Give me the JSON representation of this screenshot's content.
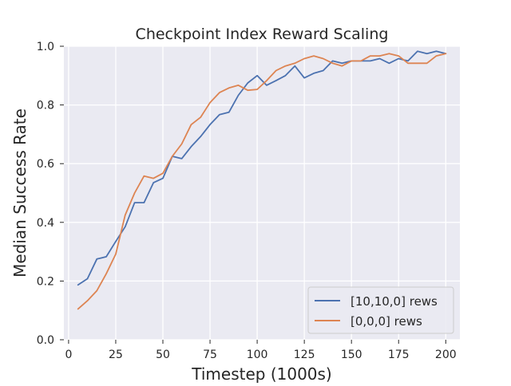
{
  "chart_data": {
    "type": "line",
    "title": "Checkpoint Index Reward Scaling",
    "xlabel": "Timestep (1000s)",
    "ylabel": "Median Success Rate",
    "xlim": [
      -2.5,
      207.5
    ],
    "ylim": [
      0.0,
      1.0
    ],
    "xticks": [
      0,
      25,
      50,
      75,
      100,
      125,
      150,
      175,
      200
    ],
    "yticks": [
      0.0,
      0.2,
      0.4,
      0.6,
      0.8,
      1.0
    ],
    "xtick_labels": [
      "0",
      "25",
      "50",
      "75",
      "100",
      "125",
      "150",
      "175",
      "200"
    ],
    "ytick_labels": [
      "0.0",
      "0.2",
      "0.4",
      "0.6",
      "0.8",
      "1.0"
    ],
    "grid": true,
    "background": "#eaeaf2",
    "legend_position": "lower right",
    "x": [
      5,
      10,
      15,
      20,
      25,
      30,
      35,
      40,
      45,
      50,
      55,
      60,
      65,
      70,
      75,
      80,
      85,
      90,
      95,
      100,
      105,
      110,
      115,
      120,
      125,
      130,
      135,
      140,
      145,
      150,
      155,
      160,
      165,
      170,
      175,
      180,
      185,
      190,
      195,
      200
    ],
    "series": [
      {
        "name": "[10,10,0] rews",
        "color": "#4c72b0",
        "values": [
          0.187,
          0.208,
          0.275,
          0.283,
          0.335,
          0.385,
          0.467,
          0.467,
          0.535,
          0.55,
          0.625,
          0.617,
          0.658,
          0.692,
          0.733,
          0.767,
          0.775,
          0.833,
          0.875,
          0.9,
          0.867,
          0.883,
          0.9,
          0.933,
          0.892,
          0.908,
          0.917,
          0.95,
          0.942,
          0.95,
          0.95,
          0.95,
          0.958,
          0.942,
          0.958,
          0.95,
          0.983,
          0.975,
          0.983,
          0.975
        ]
      },
      {
        "name": "[0,0,0] rews",
        "color": "#dd8452",
        "values": [
          0.105,
          0.133,
          0.167,
          0.225,
          0.292,
          0.425,
          0.5,
          0.558,
          0.55,
          0.567,
          0.625,
          0.667,
          0.733,
          0.758,
          0.808,
          0.842,
          0.858,
          0.867,
          0.85,
          0.853,
          0.883,
          0.917,
          0.933,
          0.942,
          0.958,
          0.967,
          0.958,
          0.942,
          0.933,
          0.95,
          0.95,
          0.967,
          0.967,
          0.975,
          0.967,
          0.942,
          0.942,
          0.942,
          0.967,
          0.975
        ]
      }
    ]
  }
}
